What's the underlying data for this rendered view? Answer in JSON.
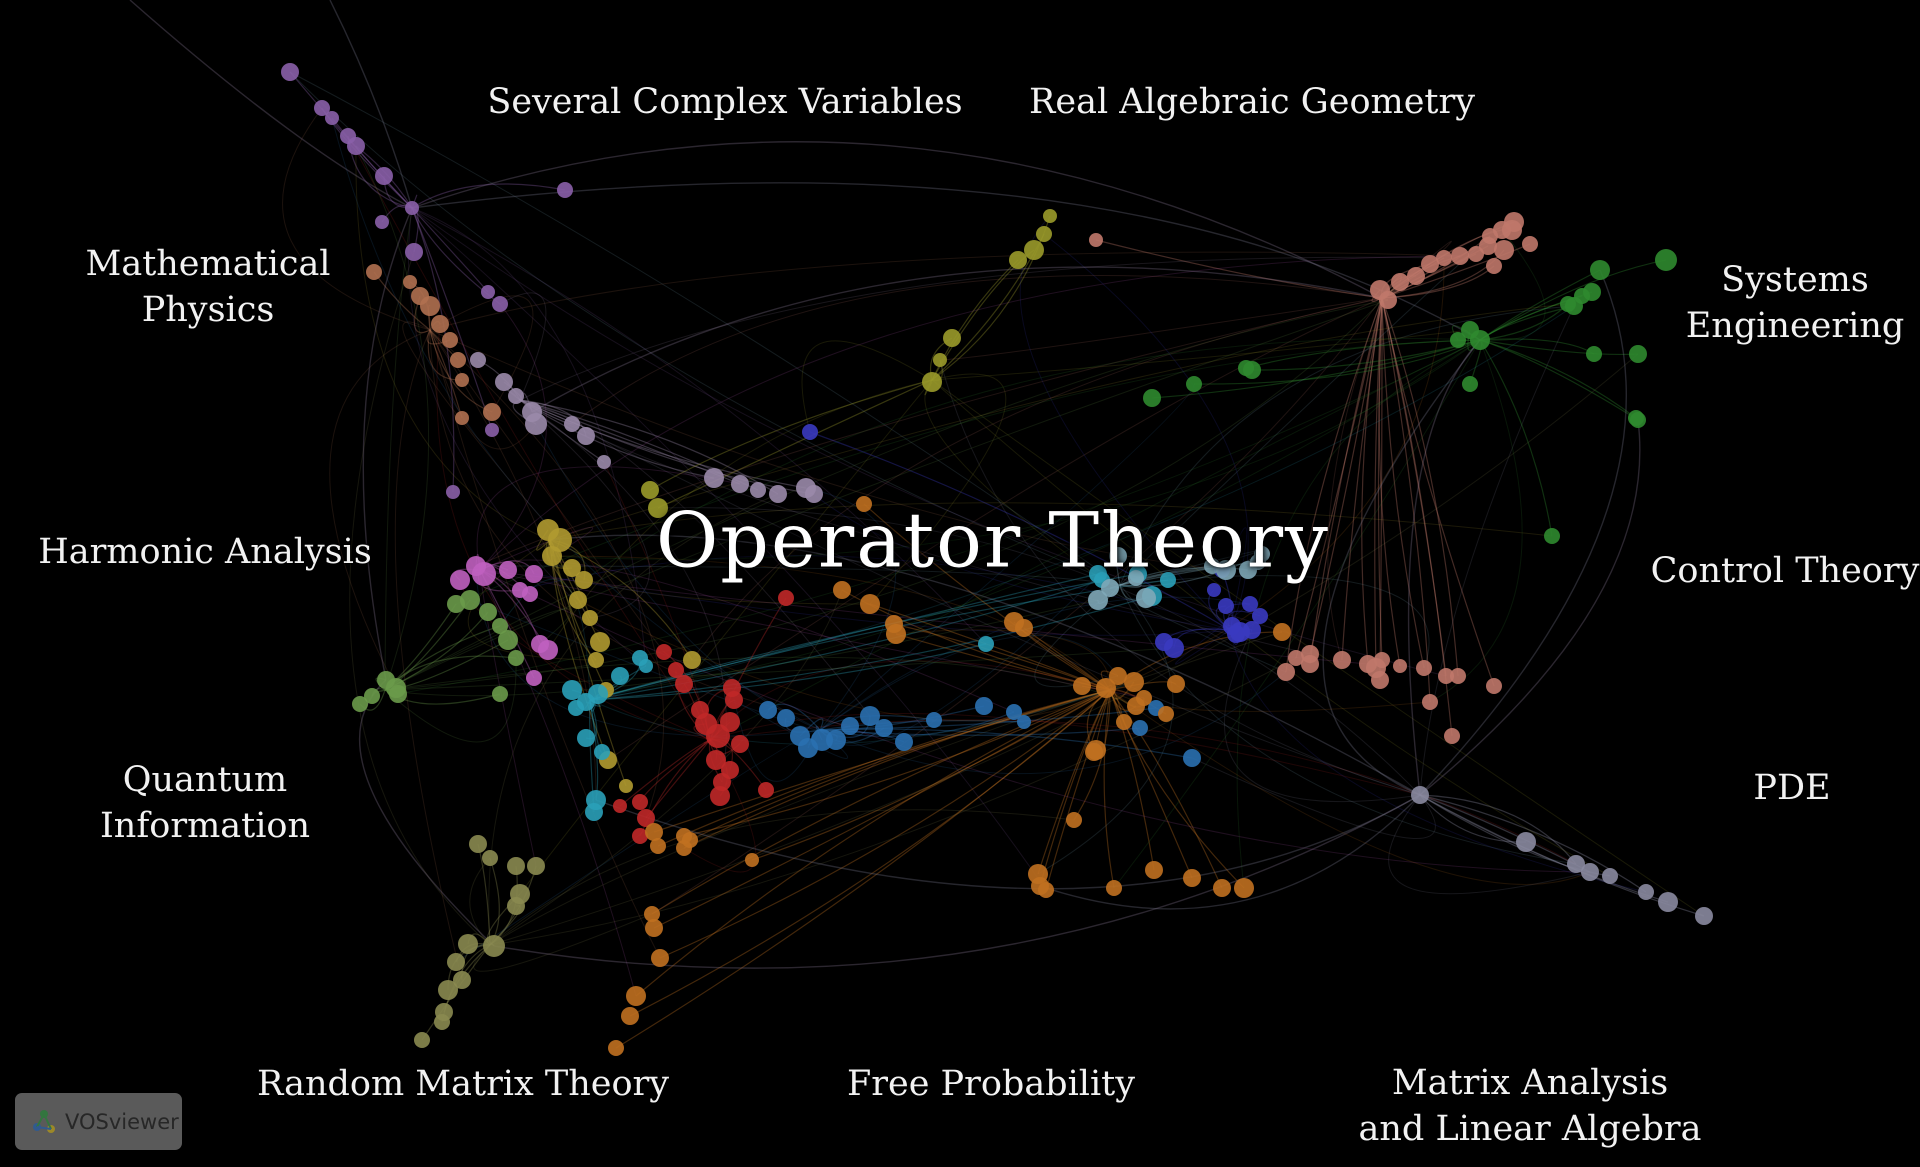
{
  "diagram": {
    "title": "Operator Theory",
    "labels": {
      "several_complex_variables": "Several Complex Variables",
      "real_algebraic_geometry": "Real Algebraic Geometry",
      "mathematical_physics_1": "Mathematical",
      "mathematical_physics_2": "Physics",
      "systems_engineering_1": "Systems",
      "systems_engineering_2": "Engineering",
      "harmonic_analysis": "Harmonic Analysis",
      "control_theory": "Control Theory",
      "quantum_information_1": "Quantum",
      "quantum_information_2": "Information",
      "pde": "PDE",
      "random_matrix_theory": "Random Matrix Theory",
      "free_probability": "Free Probability",
      "matrix_analysis_1": "Matrix Analysis",
      "matrix_analysis_2": "and Linear Algebra"
    },
    "cluster_colors": {
      "purple": "#8a5fa8",
      "salmon": "#c0786a",
      "green": "#2f8a2f",
      "olive": "#9a9a2a",
      "pink": "#c060c0",
      "yellow": "#b09a30",
      "cyan": "#2aa0b8",
      "red": "#c02828",
      "blue": "#2a70b0",
      "orange": "#c07020",
      "navy": "#3a3ac0",
      "lightblue": "#7fa8b8",
      "gray": "#8a8aa0",
      "lime": "#6a9a4a",
      "khaki": "#8a8a50",
      "lavender": "#9a8aaa",
      "brown": "#b07050"
    },
    "icons": {
      "logo": "vosviewer-logo-icon"
    }
  },
  "watermark": {
    "text": "VOSviewer"
  }
}
